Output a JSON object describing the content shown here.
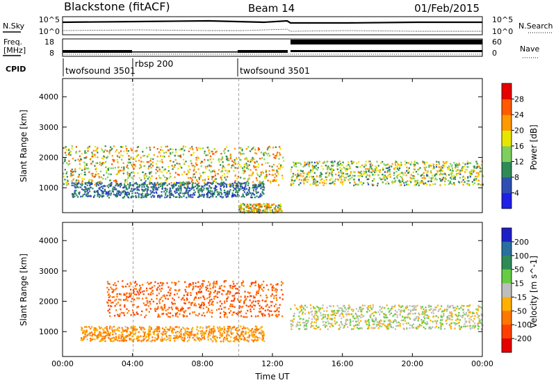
{
  "header": {
    "station": "Blackstone (fitACF)",
    "beam": "Beam 14",
    "date": "01/Feb/2015"
  },
  "strip_labels": {
    "nsky": "N.Sky",
    "nsearch": "N.Search",
    "freq_line1": "Freq.",
    "freq_line2": "[MHz]",
    "nave": "Nave",
    "cpid": "CPID",
    "noise_tick_hi_left": "10^5",
    "noise_tick_lo_left": "10^0",
    "noise_tick_hi_right": "10^5",
    "noise_tick_lo_right": "10^0",
    "freq_tick_hi": "18",
    "freq_tick_lo": "8",
    "nave_tick_hi": "60",
    "nave_tick_lo": "0"
  },
  "cpid_segments": [
    {
      "label": "twofsound 3501"
    },
    {
      "label": "rbsp 200"
    },
    {
      "label": "twofsound 3501"
    }
  ],
  "chart_data": [
    {
      "type": "heatmap",
      "title": "",
      "xlabel": "Time UT",
      "ylabel": "Slant Range [km]",
      "colorbar_label": "Power [dB]",
      "x_ticks": [
        "00:00",
        "04:00",
        "08:00",
        "12:00",
        "16:00",
        "20:00",
        "00:00"
      ],
      "x_range_hours": [
        0,
        24
      ],
      "y_ticks": [
        1000,
        2000,
        3000,
        4000
      ],
      "ylim": [
        180,
        4600
      ],
      "colorbar_ticks": [
        4,
        8,
        12,
        16,
        20,
        24,
        28
      ],
      "colorbar_range": [
        0,
        32
      ],
      "colors": [
        "#1f1fe6",
        "#2f4fb3",
        "#2e8b57",
        "#7fcf5f",
        "#e6e600",
        "#ff9900",
        "#ff5a00",
        "#e60000"
      ],
      "features": [
        {
          "name": "main echo band",
          "t_start": 0,
          "t_end": 12.6,
          "range_km": [
            1100,
            2400
          ],
          "peak_db": 28
        },
        {
          "name": "near-range band",
          "t_start": 0.5,
          "t_end": 11.5,
          "range_km": [
            700,
            1200
          ],
          "peak_db": 12
        },
        {
          "name": "post-13UT band",
          "t_start": 13.0,
          "t_end": 24,
          "range_km": [
            1100,
            1900
          ],
          "peak_db": 24
        },
        {
          "name": "ground scatter near 12UT",
          "t_start": 10.0,
          "t_end": 12.5,
          "range_km": [
            200,
            500
          ],
          "peak_db": 28
        }
      ]
    },
    {
      "type": "heatmap",
      "title": "",
      "xlabel": "Time UT",
      "ylabel": "Slant Range [km]",
      "colorbar_label": "Velocity [m s^-1]",
      "x_ticks": [
        "00:00",
        "04:00",
        "08:00",
        "12:00",
        "16:00",
        "20:00",
        "00:00"
      ],
      "x_range_hours": [
        0,
        24
      ],
      "y_ticks": [
        1000,
        2000,
        3000,
        4000
      ],
      "ylim": [
        180,
        4600
      ],
      "colorbar_ticks": [
        200,
        100,
        50,
        15,
        -15,
        -50,
        -100,
        -200
      ],
      "colorbar_range": [
        -250,
        250
      ],
      "colors": [
        "#1f1fc8",
        "#2a6f9f",
        "#2e8b57",
        "#66cc44",
        "#bebebe",
        "#ffb000",
        "#ff7700",
        "#ff4000",
        "#e60000"
      ],
      "features": [
        {
          "name": "negative velocity band",
          "t_start": 2.5,
          "t_end": 12.6,
          "range_km": [
            1500,
            2700
          ],
          "velocity": -100
        },
        {
          "name": "near-range band",
          "t_start": 1,
          "t_end": 11.5,
          "range_km": [
            700,
            1200
          ],
          "velocity": -50
        },
        {
          "name": "ground scatter",
          "t_start": 13.0,
          "t_end": 24,
          "range_km": [
            1100,
            1900
          ],
          "velocity": 0
        }
      ]
    }
  ]
}
